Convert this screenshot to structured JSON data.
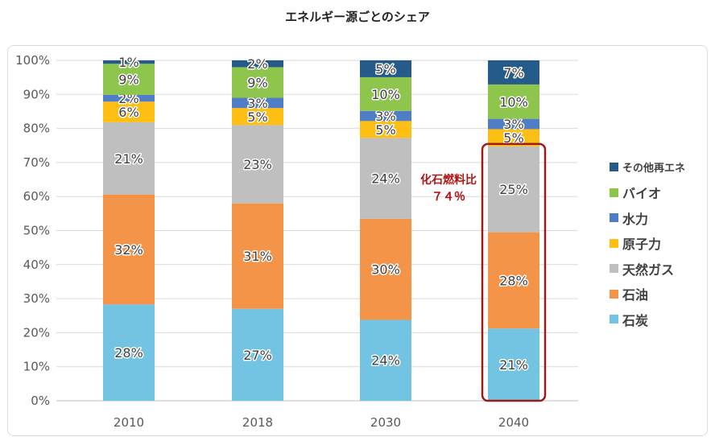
{
  "chart_data": {
    "type": "bar",
    "stacked": true,
    "title": "エネルギー源ごとのシェア",
    "categories": [
      "2010",
      "2018",
      "2030",
      "2040"
    ],
    "y_ticks": [
      "0%",
      "10%",
      "20%",
      "30%",
      "40%",
      "50%",
      "60%",
      "70%",
      "80%",
      "90%",
      "100%"
    ],
    "ylim": [
      0,
      100
    ],
    "grid": true,
    "legend_position": "right",
    "series": [
      {
        "name": "石炭",
        "color": "#72c4e2",
        "values": [
          28,
          27,
          24,
          21
        ],
        "labels": [
          "28%",
          "27%",
          "24%",
          "21%"
        ]
      },
      {
        "name": "石油",
        "color": "#f39449",
        "values": [
          32,
          31,
          30,
          28
        ],
        "labels": [
          "32%",
          "31%",
          "30%",
          "28%"
        ]
      },
      {
        "name": "天然ガス",
        "color": "#bfbfbf",
        "values": [
          21,
          23,
          24,
          25
        ],
        "labels": [
          "21%",
          "23%",
          "24%",
          "25%"
        ]
      },
      {
        "name": "原子力",
        "color": "#fdbf13",
        "values": [
          6,
          5,
          5,
          5
        ],
        "labels": [
          "6%",
          "5%",
          "5%",
          "5%"
        ]
      },
      {
        "name": "水力",
        "color": "#4f7ec7",
        "values": [
          2,
          3,
          3,
          3
        ],
        "labels": [
          "2%",
          "3%",
          "3%",
          "3%"
        ]
      },
      {
        "name": "バイオ",
        "color": "#8ec54d",
        "values": [
          9,
          9,
          10,
          10
        ],
        "labels": [
          "9%",
          "9%",
          "10%",
          "10%"
        ]
      },
      {
        "name": "その他再エネ",
        "color": "#245b8a",
        "values": [
          1,
          2,
          5,
          7
        ],
        "labels": [
          "1%",
          "2%",
          "5%",
          "7%"
        ]
      }
    ],
    "annotation": {
      "text_line1": "化石燃料比",
      "text_line2": "７４％",
      "color": "#b01515",
      "highlight_category": "2040"
    }
  }
}
